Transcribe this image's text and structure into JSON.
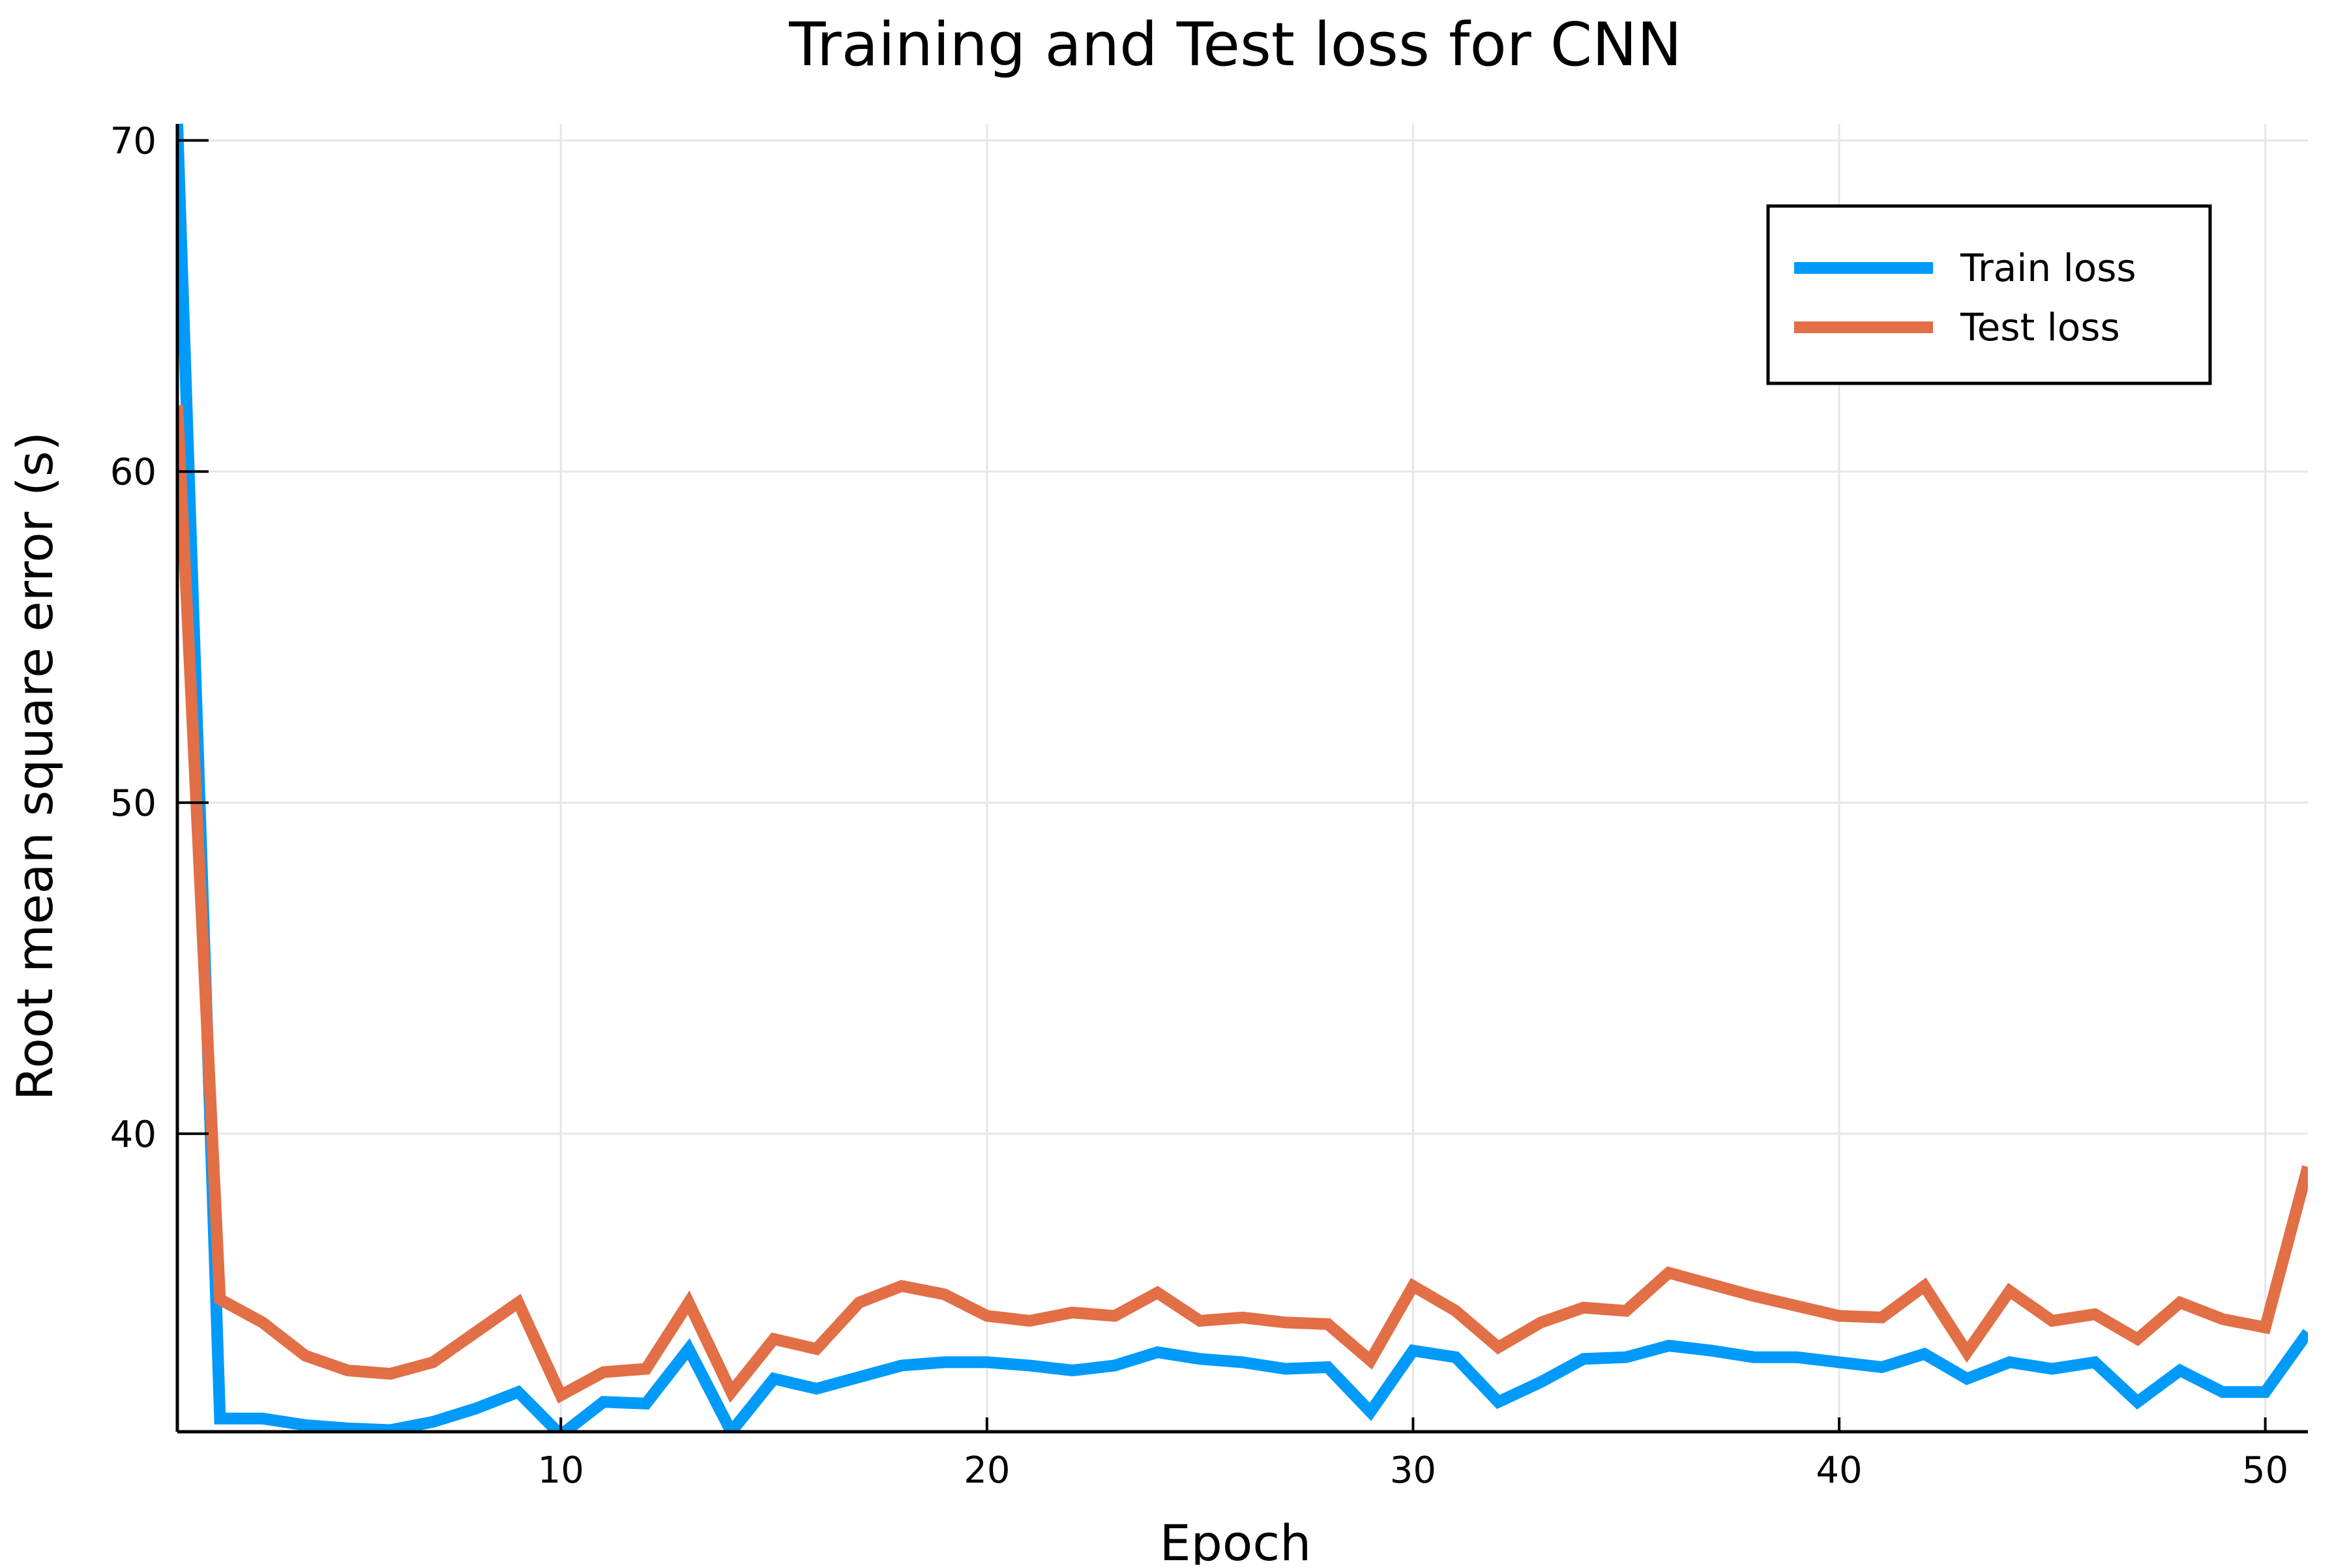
{
  "chart_data": {
    "type": "line",
    "title": "Training and Test loss for CNN",
    "xlabel": "Epoch",
    "ylabel": "Root mean square error (s)",
    "xlim": [
      1,
      51
    ],
    "ylim": [
      31,
      70.5
    ],
    "x_ticks": [
      10,
      20,
      30,
      40,
      50
    ],
    "y_ticks": [
      40,
      50,
      60,
      70
    ],
    "x_tick_labels": [
      "10",
      "20",
      "30",
      "40",
      "50"
    ],
    "y_tick_labels": [
      "40",
      "50",
      "60",
      "70"
    ],
    "grid": true,
    "legend": {
      "position": "top-right",
      "framed": true
    },
    "x": [
      1,
      2,
      3,
      4,
      5,
      6,
      7,
      8,
      9,
      10,
      11,
      12,
      13,
      14,
      15,
      16,
      17,
      18,
      19,
      20,
      21,
      22,
      23,
      24,
      25,
      26,
      27,
      28,
      29,
      30,
      31,
      32,
      33,
      34,
      35,
      36,
      37,
      38,
      39,
      40,
      41,
      42,
      43,
      44,
      45,
      46,
      47,
      48,
      49,
      50,
      51
    ],
    "series": [
      {
        "name": "Train loss",
        "color": "#009AFA",
        "values": [
          70.5,
          31.4,
          31.4,
          31.2,
          31.1,
          31.05,
          31.3,
          31.7,
          32.2,
          30.9,
          31.9,
          31.85,
          33.5,
          31.0,
          32.6,
          32.3,
          32.65,
          33.0,
          33.1,
          33.1,
          33.0,
          32.85,
          33.0,
          33.4,
          33.2,
          33.1,
          32.9,
          32.95,
          31.6,
          33.45,
          33.25,
          31.9,
          32.5,
          33.2,
          33.25,
          33.6,
          33.45,
          33.25,
          33.25,
          33.1,
          32.95,
          33.35,
          32.6,
          33.1,
          32.9,
          33.1,
          31.9,
          32.85,
          32.2,
          32.2,
          34.0
        ]
      },
      {
        "name": "Test loss",
        "color": "#E26F46",
        "values": [
          62.0,
          35.0,
          34.3,
          33.3,
          32.85,
          32.75,
          33.1,
          34.0,
          34.9,
          32.1,
          32.8,
          32.9,
          34.9,
          32.2,
          33.8,
          33.5,
          34.9,
          35.4,
          35.15,
          34.5,
          34.35,
          34.6,
          34.5,
          35.2,
          34.35,
          34.45,
          34.3,
          34.25,
          33.15,
          35.4,
          34.65,
          33.55,
          34.3,
          34.75,
          34.65,
          35.8,
          35.45,
          35.1,
          34.8,
          34.5,
          34.45,
          35.4,
          33.4,
          35.25,
          34.35,
          34.55,
          33.8,
          34.9,
          34.4,
          34.15,
          39.0
        ]
      }
    ]
  }
}
